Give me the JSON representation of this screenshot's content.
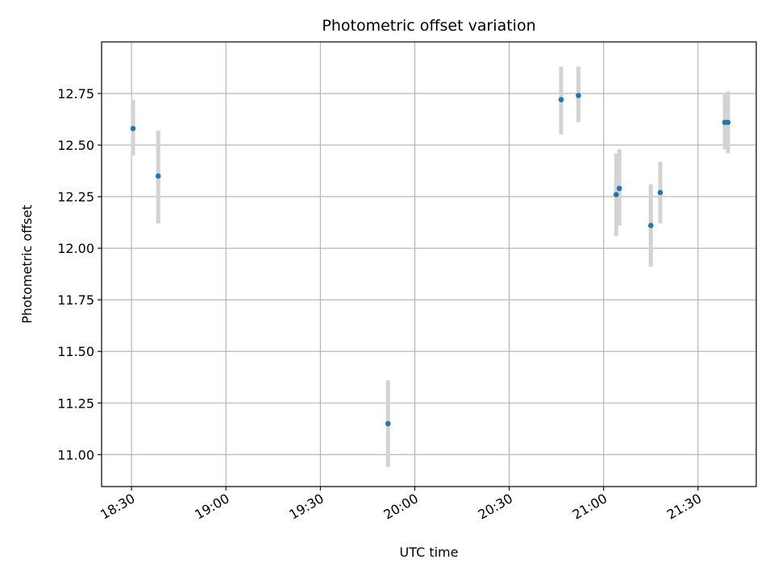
{
  "chart_data": {
    "type": "scatter",
    "title": "Photometric offset variation",
    "xlabel": "UTC time",
    "ylabel": "Photometric offset",
    "grid": true,
    "xlim": [
      "18:20:30",
      "21:48:30"
    ],
    "ylim": [
      10.845,
      13.0
    ],
    "x_ticks": [
      "18:30",
      "19:00",
      "19:30",
      "20:00",
      "20:30",
      "21:00",
      "21:30"
    ],
    "y_ticks": [
      "11.00",
      "11.25",
      "11.50",
      "11.75",
      "12.00",
      "12.25",
      "12.50",
      "12.75"
    ],
    "marker_color": "#1f77b4",
    "errorbar_color": "#d3d3d3",
    "points": [
      {
        "time": "18:30:30",
        "value": 12.58,
        "err_low": 12.45,
        "err_high": 12.72
      },
      {
        "time": "18:38:30",
        "value": 12.35,
        "err_low": 12.12,
        "err_high": 12.57
      },
      {
        "time": "19:51:30",
        "value": 11.15,
        "err_low": 10.94,
        "err_high": 11.36
      },
      {
        "time": "20:46:30",
        "value": 12.72,
        "err_low": 12.55,
        "err_high": 12.88
      },
      {
        "time": "20:52:00",
        "value": 12.74,
        "err_low": 12.61,
        "err_high": 12.88
      },
      {
        "time": "21:04:00",
        "value": 12.26,
        "err_low": 12.06,
        "err_high": 12.46
      },
      {
        "time": "21:05:00",
        "value": 12.29,
        "err_low": 12.11,
        "err_high": 12.48
      },
      {
        "time": "21:15:00",
        "value": 12.11,
        "err_low": 11.91,
        "err_high": 12.31
      },
      {
        "time": "21:18:00",
        "value": 12.27,
        "err_low": 12.12,
        "err_high": 12.42
      },
      {
        "time": "21:38:30",
        "value": 12.61,
        "err_low": 12.48,
        "err_high": 12.75
      },
      {
        "time": "21:39:30",
        "value": 12.61,
        "err_low": 12.46,
        "err_high": 12.76
      }
    ]
  }
}
